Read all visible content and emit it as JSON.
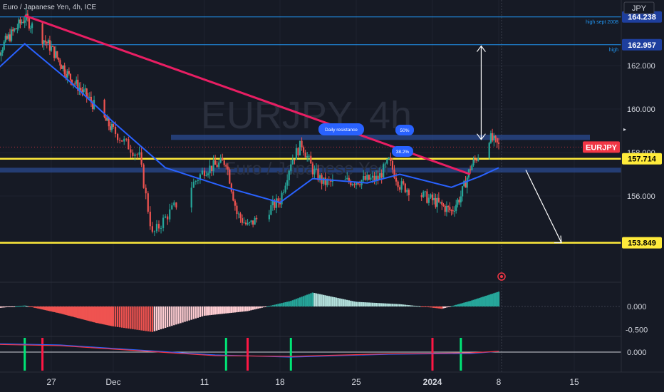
{
  "header": {
    "title": "Euro / Japanese Yen, 4h, ICE",
    "currency": "JPY"
  },
  "watermark": {
    "symbol": "EURJPY, 4h",
    "name": "Euro / Japanese Yen"
  },
  "colors": {
    "background": "#161a25",
    "candle_up": "#26a69a",
    "candle_down": "#ef5350",
    "trendline": "#e91e63",
    "moving_average": "#2962ff",
    "support_line": "#ffeb3b",
    "zone": "#2a4a8f",
    "info_line": "#2196f3",
    "symbol_badge": "#f23645",
    "callout": "#2962ff"
  },
  "chart_data": [
    {
      "type": "candlestick",
      "title": "Euro / Japanese Yen, 4h, ICE",
      "symbol": "EURJPY",
      "ylim": [
        151.0,
        165.0
      ],
      "x_tick_labels": [
        "27",
        "Dec",
        "11",
        "18",
        "25",
        "2024",
        "8",
        "15"
      ],
      "y_tick_values": [
        156.0,
        158.0,
        160.0,
        162.0
      ],
      "y_tick_labels": [
        "156.000",
        "158.000",
        "160.000",
        "162.000"
      ],
      "price_badges": [
        {
          "label": "164.238",
          "value": 164.238,
          "note": "high sept 2008"
        },
        {
          "label": "162.957",
          "value": 162.957,
          "note": "high"
        },
        {
          "label": "157.714",
          "value": 157.714
        },
        {
          "label": "153.849",
          "value": 153.849
        }
      ],
      "current_symbol_label": "EURJPY",
      "current_price": 158.25,
      "annotations": [
        "Daily resistance",
        "50%",
        "38.2%"
      ],
      "resistance_zone": [
        158.58,
        158.82
      ],
      "support_zone": [
        157.08,
        157.3
      ],
      "trendline": [
        {
          "x": "Nov 24",
          "y": 164.3
        },
        {
          "x": "Jan 5",
          "y": 157.0
        }
      ],
      "price_path": [
        {
          "x": "Nov 20",
          "y": 162.0
        },
        {
          "x": "Nov 22",
          "y": 163.2
        },
        {
          "x": "Nov 24",
          "y": 164.2
        },
        {
          "x": "Nov 27",
          "y": 162.8
        },
        {
          "x": "Nov 29",
          "y": 161.5
        },
        {
          "x": "Dec 1",
          "y": 160.6
        },
        {
          "x": "Dec 4",
          "y": 159.0
        },
        {
          "x": "Dec 6",
          "y": 157.8
        },
        {
          "x": "Dec 7",
          "y": 154.2
        },
        {
          "x": "Dec 8",
          "y": 155.0
        },
        {
          "x": "Dec 11",
          "y": 157.2
        },
        {
          "x": "Dec 13",
          "y": 157.6
        },
        {
          "x": "Dec 14",
          "y": 155.2
        },
        {
          "x": "Dec 15",
          "y": 154.6
        },
        {
          "x": "Dec 18",
          "y": 155.8
        },
        {
          "x": "Dec 19",
          "y": 157.6
        },
        {
          "x": "Dec 20",
          "y": 158.4
        },
        {
          "x": "Dec 21",
          "y": 157.2
        },
        {
          "x": "Dec 22",
          "y": 156.6
        },
        {
          "x": "Dec 25",
          "y": 156.7
        },
        {
          "x": "Dec 27",
          "y": 156.8
        },
        {
          "x": "Dec 28",
          "y": 157.6
        },
        {
          "x": "Dec 29",
          "y": 156.5
        },
        {
          "x": "Jan 1",
          "y": 155.8
        },
        {
          "x": "Jan 3",
          "y": 155.3
        },
        {
          "x": "Jan 4",
          "y": 156.0
        },
        {
          "x": "Jan 5",
          "y": 157.3
        },
        {
          "x": "Jan 7",
          "y": 158.7
        },
        {
          "x": "Jan 8",
          "y": 158.3
        }
      ],
      "moving_average": [
        {
          "x": "Nov 20",
          "y": 161.5
        },
        {
          "x": "Nov 24",
          "y": 163.0
        },
        {
          "x": "Nov 29",
          "y": 161.3
        },
        {
          "x": "Dec 4",
          "y": 159.4
        },
        {
          "x": "Dec 8",
          "y": 157.3
        },
        {
          "x": "Dec 13",
          "y": 156.4
        },
        {
          "x": "Dec 18",
          "y": 155.7
        },
        {
          "x": "Dec 21",
          "y": 156.8
        },
        {
          "x": "Dec 26",
          "y": 156.6
        },
        {
          "x": "Dec 29",
          "y": 157.0
        },
        {
          "x": "Jan 3",
          "y": 156.4
        },
        {
          "x": "Jan 6",
          "y": 156.9
        },
        {
          "x": "Jan 8",
          "y": 157.3
        }
      ]
    },
    {
      "type": "histogram",
      "ylim": [
        -0.9,
        0.5
      ],
      "y_tick_labels": [
        "0.000",
        "-0.500"
      ],
      "values": [
        {
          "x": "Nov 20",
          "y": -0.05
        },
        {
          "x": "Nov 24",
          "y": 0.02
        },
        {
          "x": "Nov 28",
          "y": -0.15
        },
        {
          "x": "Dec 2",
          "y": -0.35
        },
        {
          "x": "Dec 7",
          "y": -0.55
        },
        {
          "x": "Dec 11",
          "y": -0.2
        },
        {
          "x": "Dec 15",
          "y": -0.1
        },
        {
          "x": "Dec 19",
          "y": 0.12
        },
        {
          "x": "Dec 21",
          "y": 0.3
        },
        {
          "x": "Dec 25",
          "y": 0.1
        },
        {
          "x": "Dec 29",
          "y": 0.05
        },
        {
          "x": "Jan 2",
          "y": -0.05
        },
        {
          "x": "Jan 5",
          "y": 0.12
        },
        {
          "x": "Jan 8",
          "y": 0.32
        }
      ]
    },
    {
      "type": "line",
      "y_tick_labels": [
        "0.000"
      ],
      "series": [
        {
          "values": [
            {
              "x": "Nov 20",
              "y": 0.6
            },
            {
              "x": "Nov 28",
              "y": 0.5
            },
            {
              "x": "Dec 5",
              "y": 0.2
            },
            {
              "x": "Dec 12",
              "y": -0.2
            },
            {
              "x": "Dec 19",
              "y": -0.35
            },
            {
              "x": "Dec 28",
              "y": -0.15
            },
            {
              "x": "Jan 5",
              "y": -0.1
            },
            {
              "x": "Jan 8",
              "y": 0.05
            }
          ]
        },
        {
          "values": [
            {
              "x": "Nov 20",
              "y": 0.55
            },
            {
              "x": "Nov 28",
              "y": 0.45
            },
            {
              "x": "Dec 5",
              "y": 0.15
            },
            {
              "x": "Dec 12",
              "y": -0.25
            },
            {
              "x": "Dec 19",
              "y": -0.3
            },
            {
              "x": "Dec 28",
              "y": -0.12
            },
            {
              "x": "Jan 5",
              "y": -0.05
            },
            {
              "x": "Jan 8",
              "y": 0.05
            }
          ]
        }
      ],
      "signals": [
        {
          "x": "Nov 24",
          "color": "#00e676"
        },
        {
          "x": "Nov 26",
          "color": "#ff1744"
        },
        {
          "x": "Dec 13",
          "color": "#00e676"
        },
        {
          "x": "Dec 15",
          "color": "#ff1744"
        },
        {
          "x": "Dec 19",
          "color": "#00e676"
        },
        {
          "x": "Jan 1",
          "color": "#ff1744"
        },
        {
          "x": "Jan 4",
          "color": "#00e676"
        }
      ]
    }
  ]
}
